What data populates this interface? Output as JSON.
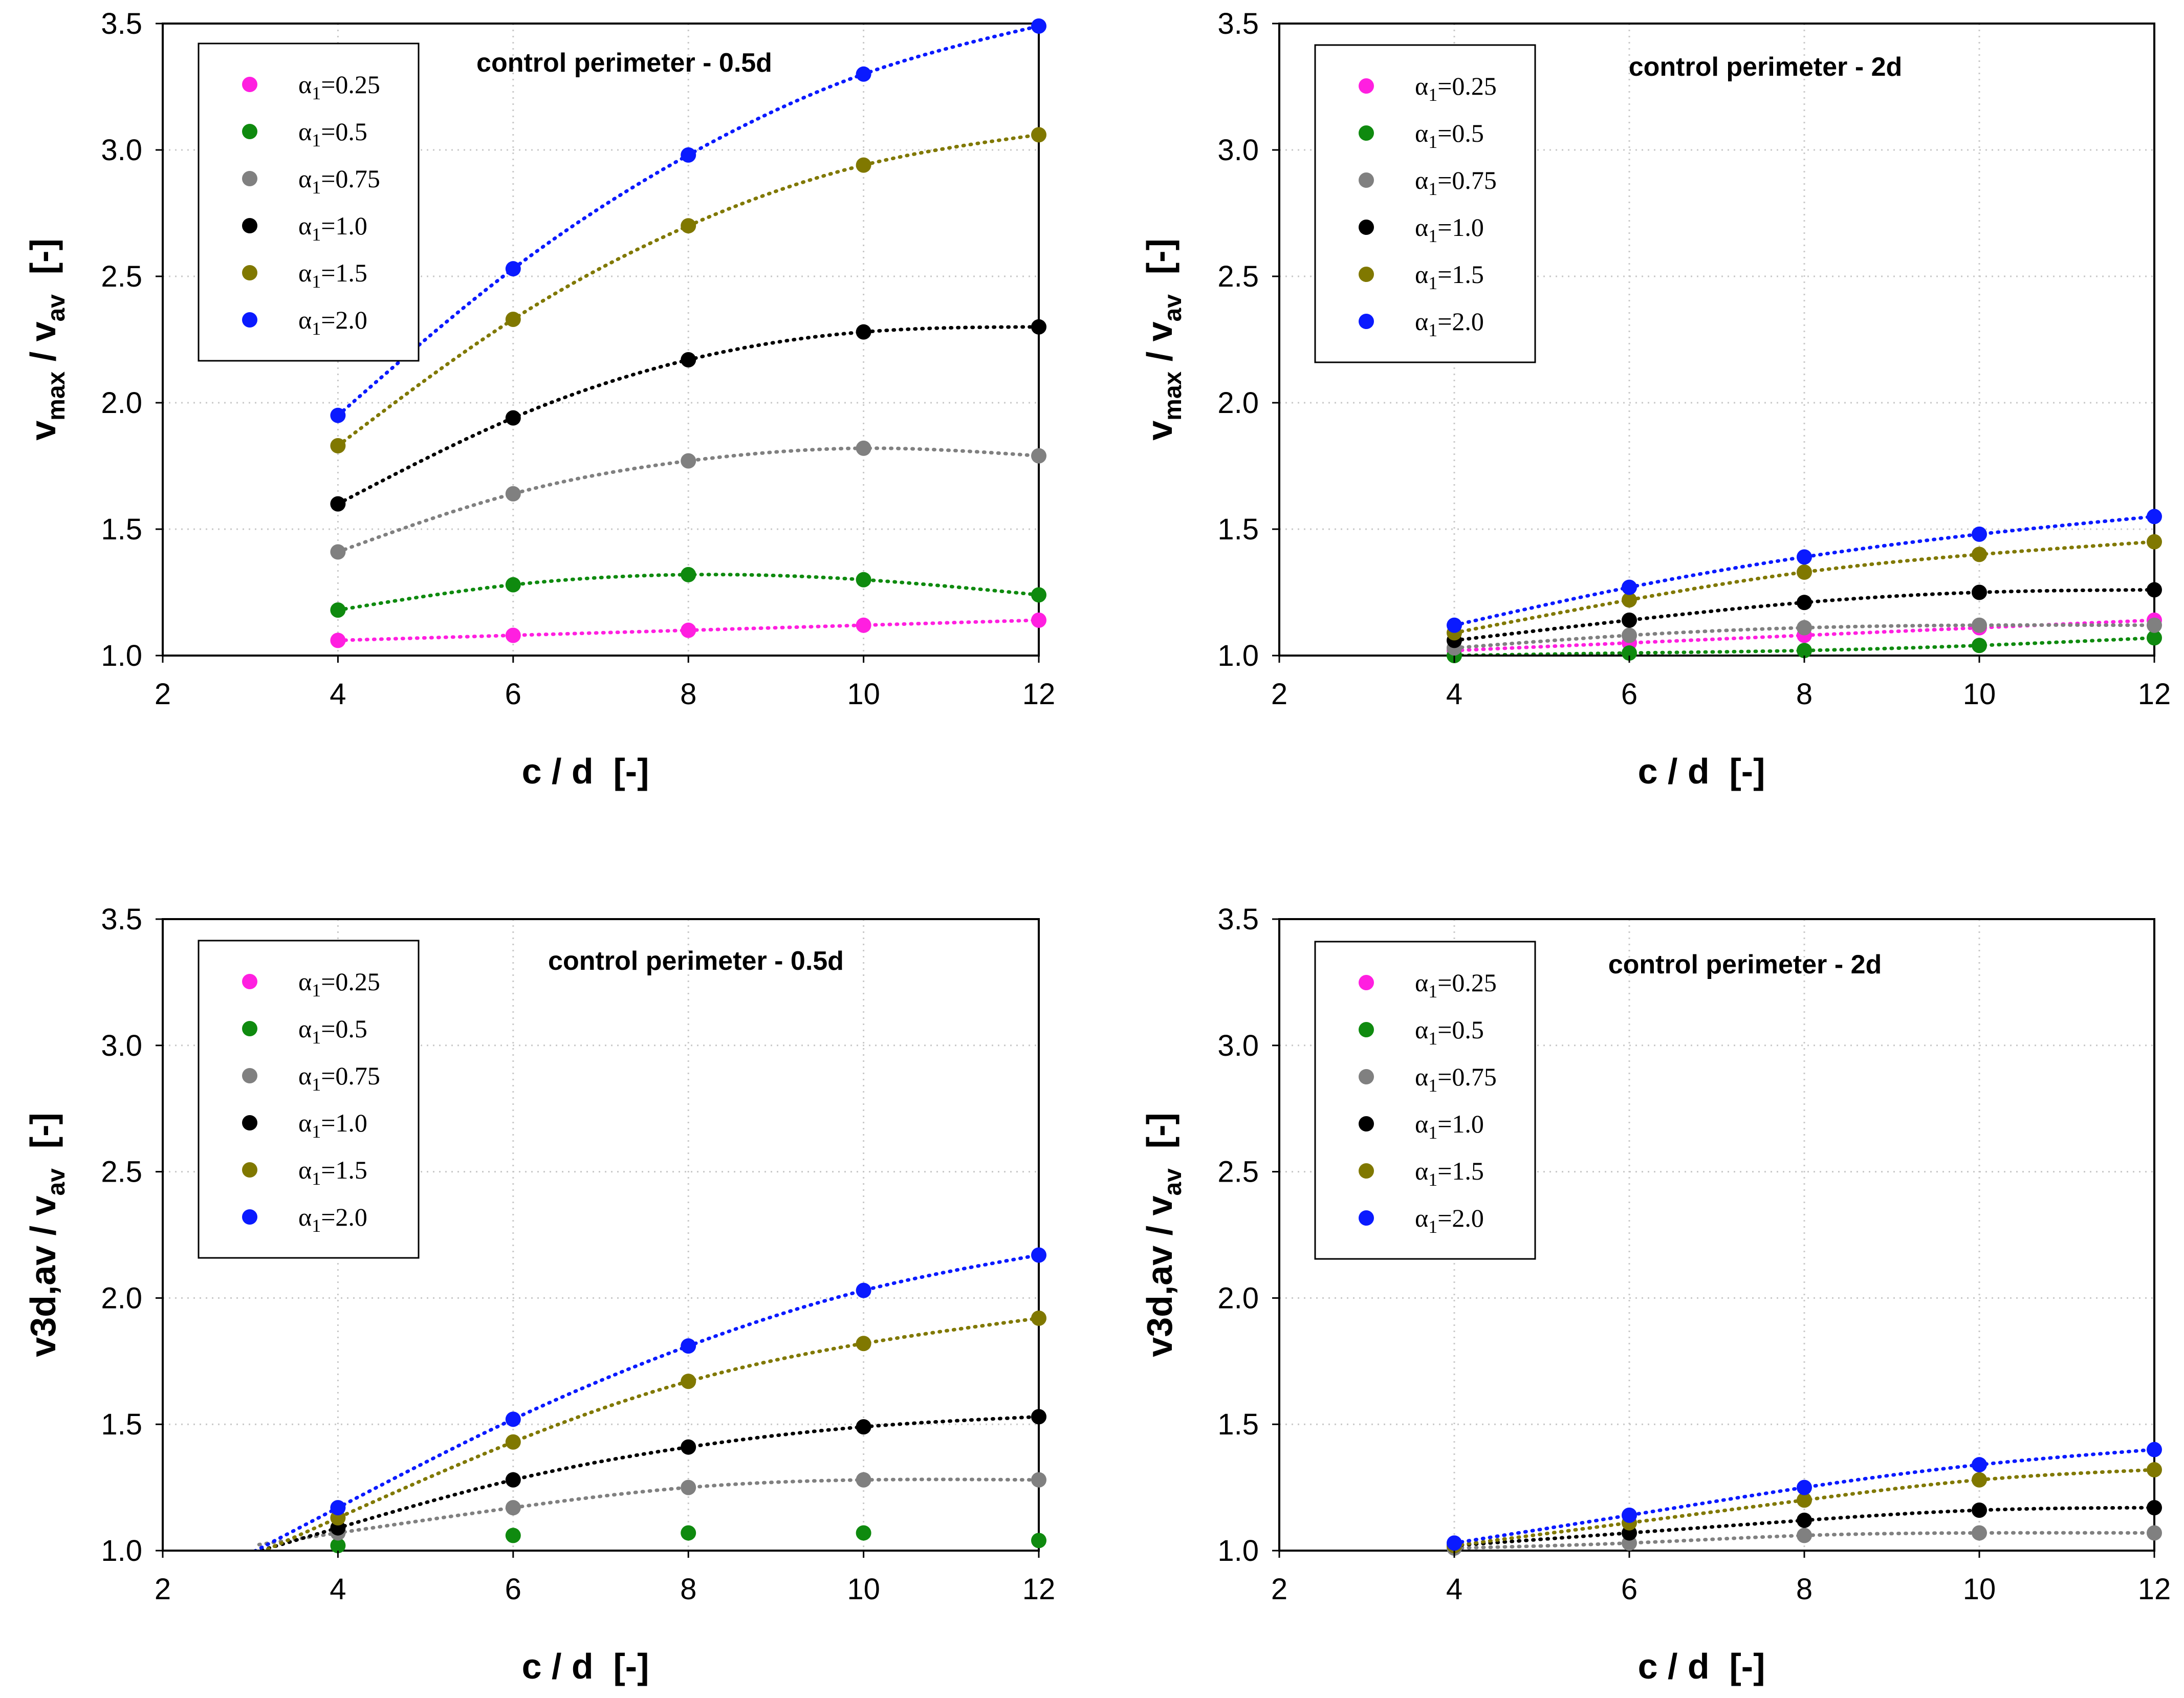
{
  "chart_data": [
    {
      "type": "scatter",
      "id": "panel-top-left",
      "title": "control perimeter - 0.5d",
      "xlabel": "c / d  [-]",
      "ylabel": {
        "main": "v",
        "sub1": "max",
        "mid": " / v",
        "sub2": "av",
        "tail": "  [-]"
      },
      "xlim": [
        2,
        12
      ],
      "ylim": [
        1.0,
        3.5
      ],
      "xticks": [
        "2",
        "4",
        "6",
        "8",
        "10",
        "12"
      ],
      "yticks": [
        "1.0",
        "1.5",
        "2.0",
        "2.5",
        "3.0",
        "3.5"
      ],
      "grid": "dotted",
      "legend_position": "top-left",
      "x": [
        4,
        6,
        8,
        10,
        12
      ],
      "series": [
        {
          "name": "α1=0.25",
          "label_main": "α",
          "label_sub": "1",
          "label_rest": "=0.25",
          "color": "#ff1fe0",
          "values": [
            1.06,
            1.08,
            1.1,
            1.12,
            1.14
          ],
          "trend_from": 4
        },
        {
          "name": "α1=0.5",
          "label_main": "α",
          "label_sub": "1",
          "label_rest": "=0.5",
          "color": "#0f8a0f",
          "values": [
            1.18,
            1.28,
            1.32,
            1.3,
            1.24
          ],
          "trend_from": 4
        },
        {
          "name": "α1=0.75",
          "label_main": "α",
          "label_sub": "1",
          "label_rest": "=0.75",
          "color": "#808080",
          "values": [
            1.41,
            1.64,
            1.77,
            1.82,
            1.79
          ],
          "trend_from": 4
        },
        {
          "name": "α1=1.0",
          "label_main": "α",
          "label_sub": "1",
          "label_rest": "=1.0",
          "color": "#000000",
          "values": [
            1.6,
            1.94,
            2.17,
            2.28,
            2.3
          ],
          "trend_from": 4
        },
        {
          "name": "α1=1.5",
          "label_main": "α",
          "label_sub": "1",
          "label_rest": "=1.5",
          "color": "#807800",
          "values": [
            1.83,
            2.33,
            2.7,
            2.94,
            3.06
          ],
          "trend_from": 4
        },
        {
          "name": "α1=2.0",
          "label_main": "α",
          "label_sub": "1",
          "label_rest": "=2.0",
          "color": "#0a1aff",
          "values": [
            1.95,
            2.53,
            2.98,
            3.3,
            3.49
          ],
          "trend_from": 4
        }
      ]
    },
    {
      "type": "scatter",
      "id": "panel-top-right",
      "title": "control perimeter - 2d",
      "xlabel": "c / d  [-]",
      "ylabel": {
        "main": "v",
        "sub1": "max",
        "mid": " / v",
        "sub2": "av",
        "tail": "  [-]"
      },
      "xlim": [
        2,
        12
      ],
      "ylim": [
        1.0,
        3.5
      ],
      "xticks": [
        "2",
        "4",
        "6",
        "8",
        "10",
        "12"
      ],
      "yticks": [
        "1.0",
        "1.5",
        "2.0",
        "2.5",
        "3.0",
        "3.5"
      ],
      "grid": "dotted",
      "legend_position": "top-left",
      "x": [
        4,
        6,
        8,
        10,
        12
      ],
      "series": [
        {
          "name": "α1=0.25",
          "label_main": "α",
          "label_sub": "1",
          "label_rest": "=0.25",
          "color": "#ff1fe0",
          "values": [
            1.02,
            1.05,
            1.08,
            1.11,
            1.14
          ],
          "trend_from": 4
        },
        {
          "name": "α1=0.5",
          "label_main": "α",
          "label_sub": "1",
          "label_rest": "=0.5",
          "color": "#0f8a0f",
          "values": [
            1.0,
            1.01,
            1.02,
            1.04,
            1.07
          ],
          "trend_from": 4
        },
        {
          "name": "α1=0.75",
          "label_main": "α",
          "label_sub": "1",
          "label_rest": "=0.75",
          "color": "#808080",
          "values": [
            1.03,
            1.08,
            1.11,
            1.12,
            1.12
          ],
          "trend_from": 4
        },
        {
          "name": "α1=1.0",
          "label_main": "α",
          "label_sub": "1",
          "label_rest": "=1.0",
          "color": "#000000",
          "values": [
            1.06,
            1.14,
            1.21,
            1.25,
            1.26
          ],
          "trend_from": 4
        },
        {
          "name": "α1=1.5",
          "label_main": "α",
          "label_sub": "1",
          "label_rest": "=1.5",
          "color": "#807800",
          "values": [
            1.09,
            1.22,
            1.33,
            1.4,
            1.45
          ],
          "trend_from": 4
        },
        {
          "name": "α1=2.0",
          "label_main": "α",
          "label_sub": "1",
          "label_rest": "=2.0",
          "color": "#0a1aff",
          "values": [
            1.12,
            1.27,
            1.39,
            1.48,
            1.55
          ],
          "trend_from": 4
        }
      ]
    },
    {
      "type": "scatter",
      "id": "panel-bottom-left",
      "title": "control perimeter - 0.5d",
      "xlabel": "c / d  [-]",
      "ylabel": {
        "main": "v3d,av",
        "sub1": "",
        "mid": " / v",
        "sub2": "av",
        "tail": "  [-]"
      },
      "xlim": [
        2,
        12
      ],
      "ylim": [
        1.0,
        3.5
      ],
      "xticks": [
        "2",
        "4",
        "6",
        "8",
        "10",
        "12"
      ],
      "yticks": [
        "1.0",
        "1.5",
        "2.0",
        "2.5",
        "3.0",
        "3.5"
      ],
      "grid": "dotted",
      "legend_position": "top-left",
      "x": [
        4,
        6,
        8,
        10,
        12
      ],
      "series": [
        {
          "name": "α1=0.25",
          "label_main": "α",
          "label_sub": "1",
          "label_rest": "=0.25",
          "color": "#ff1fe0",
          "values": [],
          "trend_from": 3
        },
        {
          "name": "α1=0.5",
          "label_main": "α",
          "label_sub": "1",
          "label_rest": "=0.5",
          "color": "#0f8a0f",
          "values": [
            1.02,
            1.06,
            1.07,
            1.07,
            1.04
          ],
          "trend_from": null
        },
        {
          "name": "α1=0.75",
          "label_main": "α",
          "label_sub": "1",
          "label_rest": "=0.75",
          "color": "#808080",
          "values": [
            1.07,
            1.17,
            1.25,
            1.28,
            1.28
          ],
          "trend_from": 3.1
        },
        {
          "name": "α1=1.0",
          "label_main": "α",
          "label_sub": "1",
          "label_rest": "=1.0",
          "color": "#000000",
          "values": [
            1.09,
            1.28,
            1.41,
            1.49,
            1.53
          ],
          "trend_from": 3.05
        },
        {
          "name": "α1=1.5",
          "label_main": "α",
          "label_sub": "1",
          "label_rest": "=1.5",
          "color": "#807800",
          "values": [
            1.13,
            1.43,
            1.67,
            1.82,
            1.92
          ],
          "trend_from": 3.05
        },
        {
          "name": "α1=2.0",
          "label_main": "α",
          "label_sub": "1",
          "label_rest": "=2.0",
          "color": "#0a1aff",
          "values": [
            1.17,
            1.52,
            1.81,
            2.03,
            2.17
          ],
          "trend_from": 3.05
        }
      ]
    },
    {
      "type": "scatter",
      "id": "panel-bottom-right",
      "title": "control perimeter - 2d",
      "xlabel": "c / d  [-]",
      "ylabel": {
        "main": "v3d,av",
        "sub1": "",
        "mid": " / v",
        "sub2": "av",
        "tail": "  [-]"
      },
      "xlim": [
        2,
        12
      ],
      "ylim": [
        1.0,
        3.5
      ],
      "xticks": [
        "2",
        "4",
        "6",
        "8",
        "10",
        "12"
      ],
      "yticks": [
        "1.0",
        "1.5",
        "2.0",
        "2.5",
        "3.0",
        "3.5"
      ],
      "grid": "dotted",
      "legend_position": "top-left",
      "x": [
        4,
        6,
        8,
        10,
        12
      ],
      "series": [
        {
          "name": "α1=0.25",
          "label_main": "α",
          "label_sub": "1",
          "label_rest": "=0.25",
          "color": "#ff1fe0",
          "values": [],
          "trend_from": null
        },
        {
          "name": "α1=0.5",
          "label_main": "α",
          "label_sub": "1",
          "label_rest": "=0.5",
          "color": "#0f8a0f",
          "values": [],
          "trend_from": null
        },
        {
          "name": "α1=0.75",
          "label_main": "α",
          "label_sub": "1",
          "label_rest": "=0.75",
          "color": "#808080",
          "values": [
            1.01,
            1.03,
            1.06,
            1.07,
            1.07
          ],
          "trend_from": 4
        },
        {
          "name": "α1=1.0",
          "label_main": "α",
          "label_sub": "1",
          "label_rest": "=1.0",
          "color": "#000000",
          "values": [
            1.02,
            1.07,
            1.12,
            1.16,
            1.17
          ],
          "trend_from": 4
        },
        {
          "name": "α1=1.5",
          "label_main": "α",
          "label_sub": "1",
          "label_rest": "=1.5",
          "color": "#807800",
          "values": [
            1.02,
            1.11,
            1.2,
            1.28,
            1.32
          ],
          "trend_from": 4
        },
        {
          "name": "α1=2.0",
          "label_main": "α",
          "label_sub": "1",
          "label_rest": "=2.0",
          "color": "#0a1aff",
          "values": [
            1.03,
            1.14,
            1.25,
            1.34,
            1.4
          ],
          "trend_from": 4
        }
      ]
    }
  ]
}
